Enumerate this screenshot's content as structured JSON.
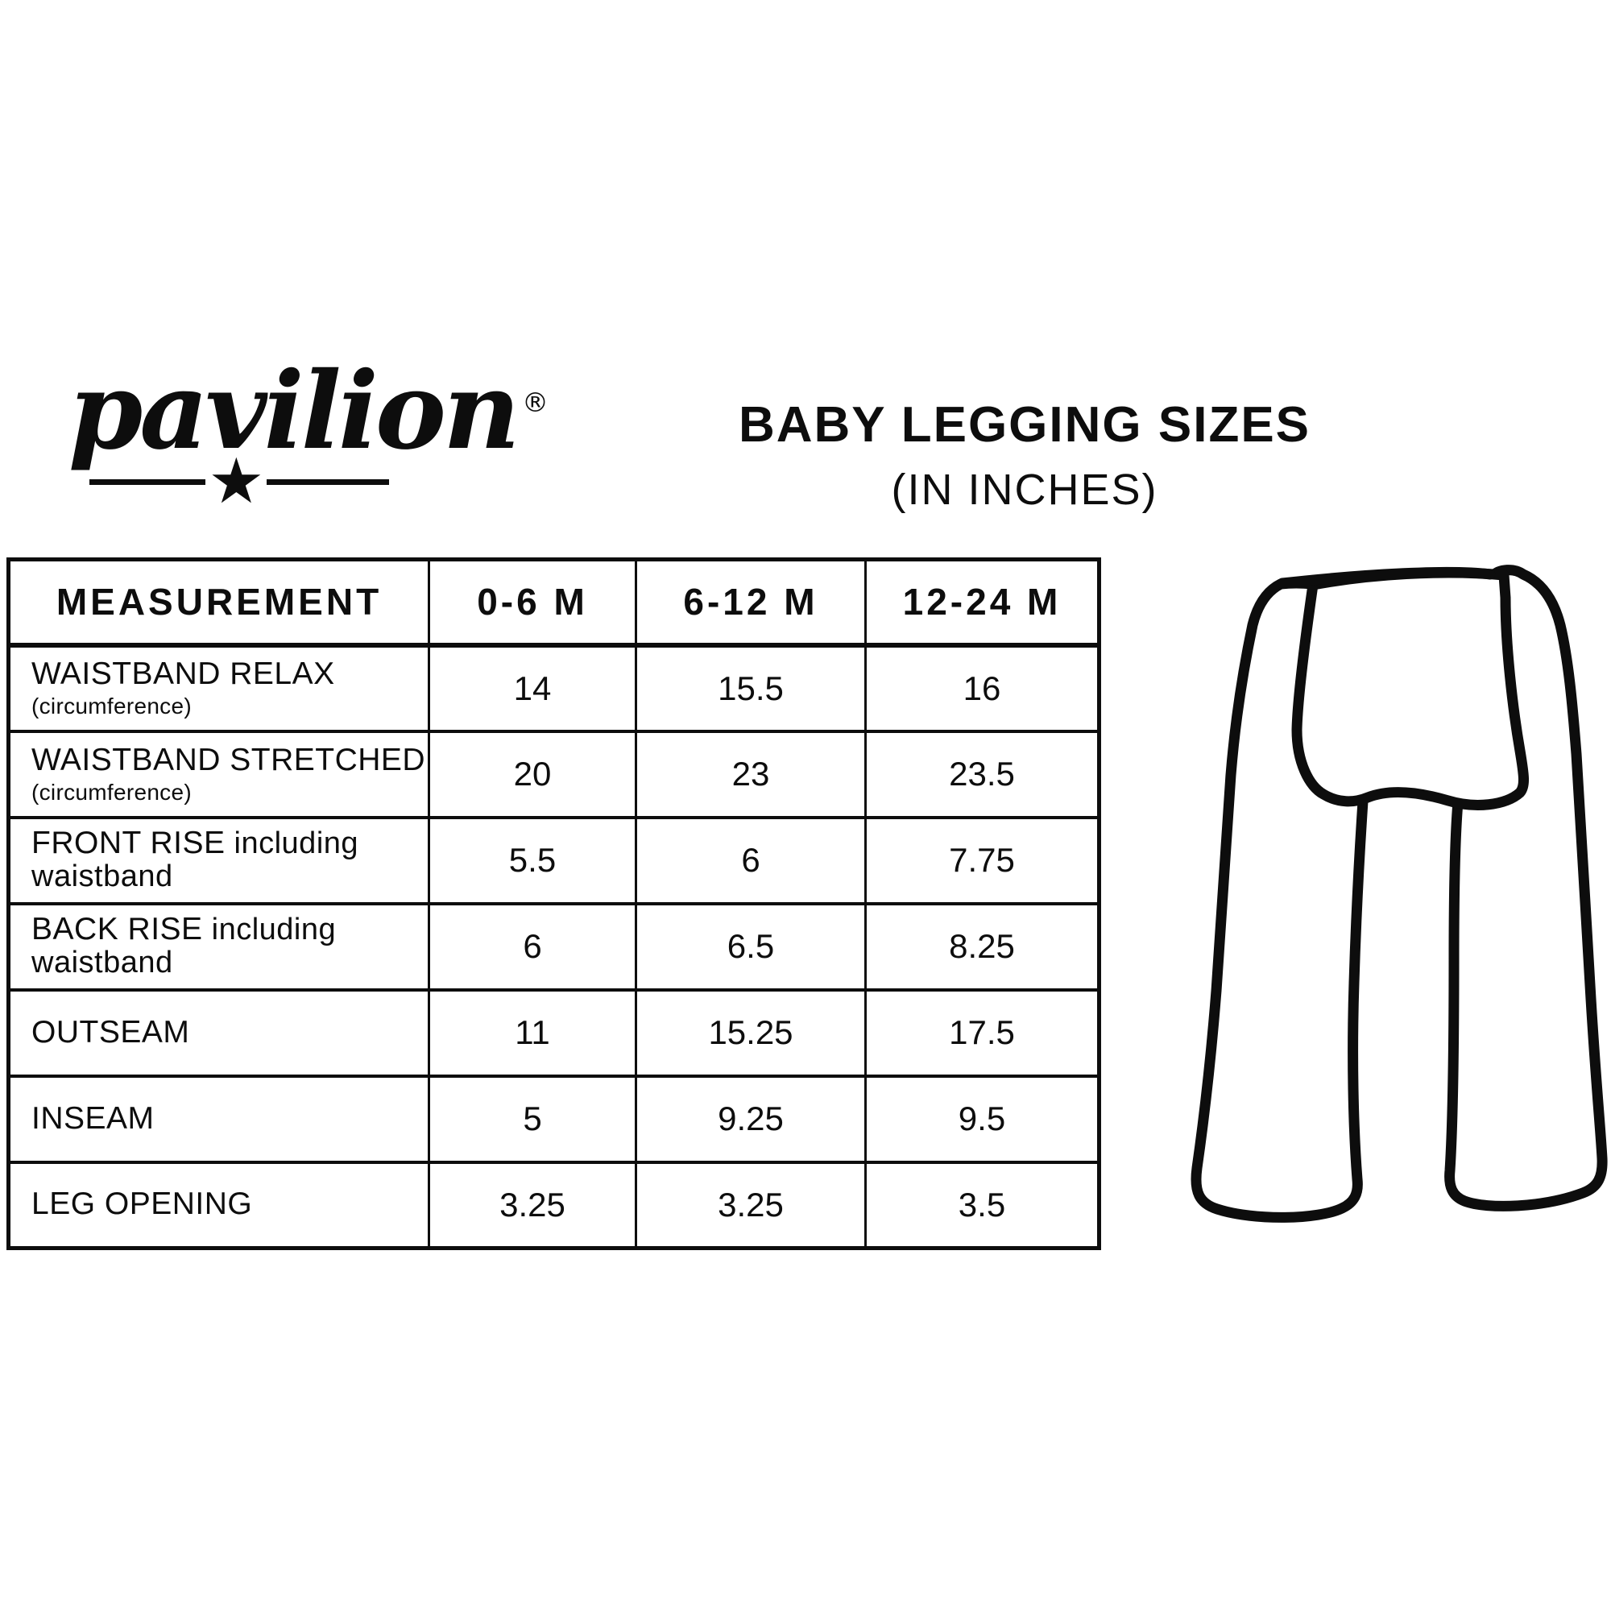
{
  "brand": {
    "name": "pavilion",
    "registered": "®",
    "star_glyph": "★"
  },
  "title": {
    "main": "BABY LEGGING SIZES",
    "sub": "(IN INCHES)"
  },
  "table": {
    "columns": [
      "MEASUREMENT",
      "0-6 M",
      "6-12 M",
      "12-24 M"
    ],
    "rows": [
      {
        "label": "WAISTBAND RELAX",
        "note": "(circumference)",
        "note_layout": "below",
        "values": [
          "14",
          "15.5",
          "16"
        ]
      },
      {
        "label": "WAISTBAND STRETCHED",
        "note": "(circumference)",
        "note_layout": "below",
        "values": [
          "20",
          "23",
          "23.5"
        ]
      },
      {
        "label": "FRONT RISE",
        "note": "including waistband",
        "note_layout": "inline",
        "values": [
          "5.5",
          "6",
          "7.75"
        ]
      },
      {
        "label": "BACK RISE",
        "note": "including waistband",
        "note_layout": "inline",
        "values": [
          "6",
          "6.5",
          "8.25"
        ]
      },
      {
        "label": "OUTSEAM",
        "note": "",
        "note_layout": "",
        "values": [
          "11",
          "15.25",
          "17.5"
        ]
      },
      {
        "label": "INSEAM",
        "note": "",
        "note_layout": "",
        "values": [
          "5",
          "9.25",
          "9.5"
        ]
      },
      {
        "label": "LEG OPENING",
        "note": "",
        "note_layout": "",
        "values": [
          "3.25",
          "3.25",
          "3.5"
        ]
      }
    ]
  },
  "chart_data": {
    "type": "table",
    "title": "BABY LEGGING SIZES",
    "subtitle": "(IN INCHES)",
    "units": "inches",
    "columns": [
      "MEASUREMENT",
      "0-6 M",
      "6-12 M",
      "12-24 M"
    ],
    "rows": [
      [
        "WAISTBAND RELAX (circumference)",
        14,
        15.5,
        16
      ],
      [
        "WAISTBAND STRETCHED (circumference)",
        20,
        23,
        23.5
      ],
      [
        "FRONT RISE including waistband",
        5.5,
        6,
        7.75
      ],
      [
        "BACK RISE including waistband",
        6,
        6.5,
        8.25
      ],
      [
        "OUTSEAM",
        11,
        15.25,
        17.5
      ],
      [
        "INSEAM",
        5,
        9.25,
        9.5
      ],
      [
        "LEG OPENING",
        3.25,
        3.25,
        3.5
      ]
    ]
  },
  "colors": {
    "ink": "#0d0d0d",
    "background": "#ffffff"
  },
  "illustration": {
    "name": "baby-leggings-back-view-outline"
  }
}
